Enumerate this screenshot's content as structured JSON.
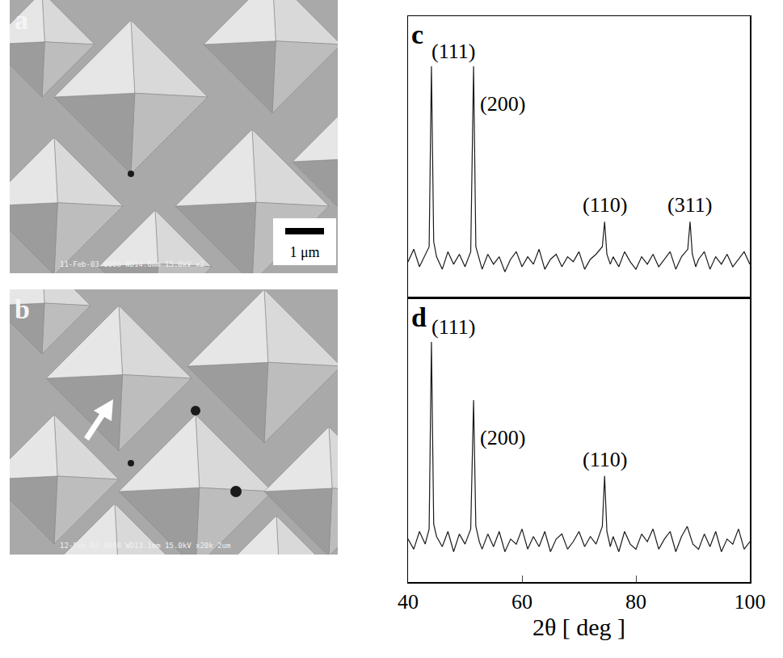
{
  "images": [
    {
      "panel": "a",
      "footer": "11-Feb-03  0088  WD14.0mm 15.0kV x2",
      "scale_bar": "1 μm"
    },
    {
      "panel": "b",
      "footer": "12-Feb-03  0098  WD13.1mm 15.0kV x20k  2um"
    }
  ],
  "chart_data": [
    {
      "type": "line",
      "panel": "c",
      "color": "#1a1a1a",
      "tick_labels": false,
      "xlim": [
        40,
        100
      ],
      "ylim": [
        0,
        1.12
      ],
      "x": [
        40,
        41,
        42,
        43,
        43.7,
        44.1,
        44.5,
        45,
        46,
        47,
        48,
        49,
        50,
        51,
        51.5,
        51.9,
        52.5,
        53,
        54,
        55,
        56,
        57,
        58,
        59,
        60,
        61,
        62,
        63,
        64,
        65,
        66,
        67,
        68,
        69,
        70,
        71,
        72,
        73,
        74.1,
        74.5,
        74.9,
        75.5,
        76,
        77,
        78,
        79,
        80,
        81,
        82,
        83,
        84,
        85,
        86,
        87,
        88,
        89.1,
        89.5,
        89.9,
        90.5,
        91,
        92,
        93,
        94,
        95,
        96,
        97,
        98,
        99,
        100
      ],
      "values": [
        0.14,
        0.19,
        0.12,
        0.17,
        0.2,
        0.92,
        0.22,
        0.16,
        0.11,
        0.18,
        0.13,
        0.17,
        0.12,
        0.18,
        0.92,
        0.2,
        0.15,
        0.11,
        0.17,
        0.13,
        0.16,
        0.1,
        0.15,
        0.18,
        0.12,
        0.16,
        0.13,
        0.19,
        0.11,
        0.15,
        0.17,
        0.12,
        0.16,
        0.14,
        0.18,
        0.11,
        0.15,
        0.17,
        0.2,
        0.3,
        0.17,
        0.13,
        0.16,
        0.12,
        0.18,
        0.14,
        0.11,
        0.16,
        0.13,
        0.17,
        0.12,
        0.15,
        0.18,
        0.11,
        0.16,
        0.19,
        0.3,
        0.17,
        0.12,
        0.15,
        0.18,
        0.11,
        0.16,
        0.13,
        0.17,
        0.12,
        0.15,
        0.18,
        0.13
      ],
      "peaks": [
        {
          "label": "(111)",
          "x": 44.1
        },
        {
          "label": "(200)",
          "x": 51.5
        },
        {
          "label": "(110)",
          "x": 74.5
        },
        {
          "label": "(311)",
          "x": 89.5
        }
      ]
    },
    {
      "type": "line",
      "panel": "d",
      "color": "#1a1a1a",
      "tick_labels": "x",
      "x_label": "2θ [ deg ]",
      "xlim": [
        40,
        100
      ],
      "xticks": [
        40,
        60,
        80,
        100
      ],
      "ylim": [
        0,
        1.12
      ],
      "x": [
        40,
        41,
        42,
        43,
        43.7,
        44.1,
        44.5,
        45,
        46,
        47,
        48,
        49,
        50,
        51,
        51.5,
        51.9,
        52.5,
        53,
        54,
        55,
        56,
        57,
        58,
        59,
        60,
        61,
        62,
        63,
        64,
        65,
        66,
        67,
        68,
        69,
        70,
        71,
        72,
        73,
        74.1,
        74.5,
        74.9,
        75.5,
        76,
        77,
        78,
        79,
        80,
        81,
        82,
        83,
        84,
        85,
        86,
        87,
        88,
        89,
        90,
        91,
        92,
        93,
        94,
        95,
        96,
        97,
        98,
        99,
        100
      ],
      "values": [
        0.17,
        0.13,
        0.2,
        0.15,
        0.21,
        0.95,
        0.23,
        0.18,
        0.14,
        0.2,
        0.12,
        0.19,
        0.15,
        0.21,
        0.72,
        0.22,
        0.16,
        0.13,
        0.19,
        0.14,
        0.2,
        0.12,
        0.17,
        0.15,
        0.21,
        0.13,
        0.18,
        0.14,
        0.2,
        0.12,
        0.17,
        0.19,
        0.13,
        0.16,
        0.2,
        0.14,
        0.18,
        0.15,
        0.22,
        0.42,
        0.2,
        0.14,
        0.18,
        0.12,
        0.2,
        0.15,
        0.13,
        0.19,
        0.16,
        0.21,
        0.13,
        0.17,
        0.2,
        0.12,
        0.18,
        0.22,
        0.15,
        0.13,
        0.19,
        0.14,
        0.2,
        0.12,
        0.17,
        0.15,
        0.21,
        0.13,
        0.16
      ],
      "peaks": [
        {
          "label": "(111)",
          "x": 44.1
        },
        {
          "label": "(200)",
          "x": 51.5
        },
        {
          "label": "(110)",
          "x": 74.5
        }
      ]
    }
  ]
}
